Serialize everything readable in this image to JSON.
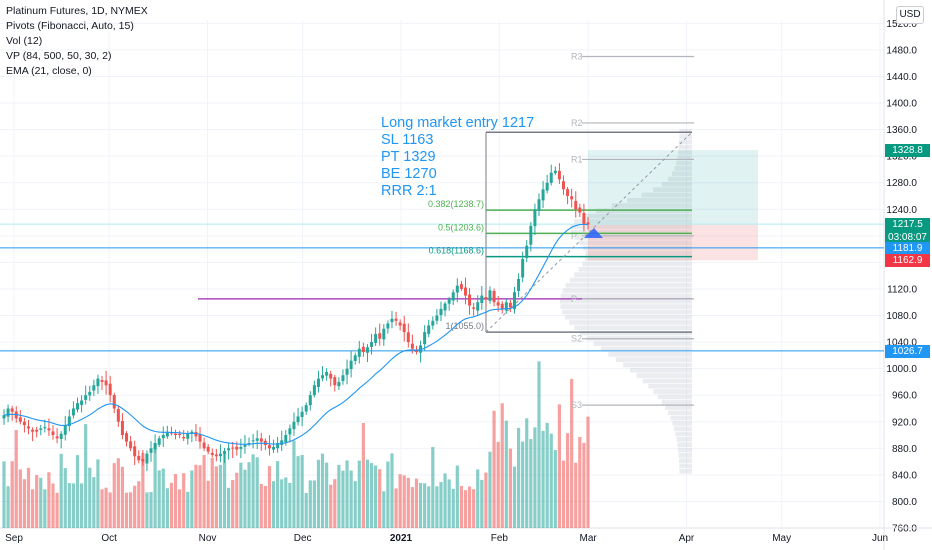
{
  "legend": {
    "title": "Platinum Futures, 1D, NYMEX",
    "indicators": [
      "Pivots (Fibonacci, Auto, 15)",
      "Vol (12)",
      "VP (84, 500, 50, 30, 2)",
      "EMA (21, close, 0)"
    ]
  },
  "currency": "USD",
  "trade_note": [
    "Long market entry 1217",
    "SL 1163",
    "PT 1329",
    "BE 1270",
    "RRR 2:1"
  ],
  "price_tags": [
    {
      "label": "1328.8",
      "value": 1328.8,
      "color": "#089981"
    },
    {
      "label": "1217.6",
      "value": 1217.6,
      "color": "#5d606b"
    },
    {
      "label": "1217.5",
      "value": 1217.5,
      "color": "#089981",
      "sub": "03:08:07"
    },
    {
      "label": "1181.9",
      "value": 1181.9,
      "color": "#2196f3"
    },
    {
      "label": "1162.9",
      "value": 1162.9,
      "color": "#f23645"
    },
    {
      "label": "1026.7",
      "value": 1026.7,
      "color": "#2196f3"
    }
  ],
  "colors": {
    "up": "#26a69a",
    "down": "#ef5350",
    "ema": "#2196f3",
    "fib": "#4caf50",
    "pivot": "#b2b5be",
    "pp": "#9c27b0"
  },
  "chart_data": {
    "type": "candlestick",
    "title": "Platinum Futures, 1D, NYMEX",
    "x_ticks": [
      "Sep",
      "Oct",
      "Nov",
      "Dec",
      "2021",
      "Feb",
      "Mar",
      "Apr",
      "May",
      "Jun"
    ],
    "x_tick_dates": [
      "2020-09-01",
      "2020-10-01",
      "2020-11-01",
      "2020-12-01",
      "2021-01-01",
      "2021-02-01",
      "2021-03-01",
      "2021-04-01",
      "2021-05-01",
      "2021-06-01"
    ],
    "y_ticks": [
      760,
      800,
      840,
      880,
      920,
      960,
      1000,
      1040,
      1080,
      1120,
      1160,
      1200,
      1240,
      1280,
      1320,
      1360,
      1400,
      1440,
      1480,
      1520
    ],
    "ylim": [
      760,
      1525
    ],
    "closes": [
      930,
      940,
      935,
      925,
      920,
      915,
      910,
      905,
      905,
      910,
      912,
      907,
      900,
      895,
      902,
      915,
      928,
      940,
      948,
      952,
      960,
      965,
      975,
      985,
      980,
      975,
      960,
      940,
      920,
      900,
      890,
      880,
      868,
      862,
      860,
      872,
      880,
      888,
      895,
      900,
      905,
      903,
      900,
      900,
      895,
      902,
      905,
      898,
      890,
      880,
      875,
      870,
      868,
      872,
      876,
      880,
      880,
      878,
      882,
      885,
      888,
      892,
      895,
      890,
      885,
      880,
      882,
      888,
      892,
      900,
      910,
      920,
      928,
      935,
      945,
      960,
      975,
      985,
      990,
      995,
      985,
      975,
      980,
      990,
      1000,
      1012,
      1020,
      1030,
      1025,
      1032,
      1040,
      1052,
      1045,
      1060,
      1068,
      1075,
      1072,
      1065,
      1055,
      1040,
      1030,
      1025,
      1035,
      1055,
      1065,
      1072,
      1080,
      1090,
      1098,
      1105,
      1115,
      1125,
      1120,
      1110,
      1095,
      1090,
      1100,
      1110,
      1105,
      1118,
      1100,
      1095,
      1090,
      1100,
      1092,
      1115,
      1135,
      1165,
      1185,
      1215,
      1240,
      1255,
      1270,
      1280,
      1295,
      1298,
      1285,
      1270,
      1260,
      1255,
      1240,
      1235,
      1218,
      1217
    ],
    "ema_note": "EMA (21, close, 0)",
    "fib_levels": [
      {
        "label": "0.382(1238.7)",
        "value": 1238.7
      },
      {
        "label": "0.5(1203.6)",
        "value": 1203.6
      },
      {
        "label": "0.618(1168.6)",
        "value": 1168.6
      },
      {
        "label": "1(1055.0)",
        "value": 1055.0
      }
    ],
    "pivot_levels": [
      {
        "label": "R3",
        "value": 1470
      },
      {
        "label": "R2",
        "value": 1370
      },
      {
        "label": "R1",
        "value": 1315
      },
      {
        "label": "P",
        "value": 1200
      },
      {
        "label": "P",
        "value": 1105
      },
      {
        "label": "S2",
        "value": 1045
      },
      {
        "label": "S3",
        "value": 945
      }
    ],
    "pivot_high": 1356,
    "purple_line": 1105,
    "fib_top": 1356,
    "position": {
      "entry": 1217,
      "stop": 1163,
      "target": 1329
    },
    "horizontal_lines": [
      1217.6,
      1181.9,
      1026.7
    ],
    "volume_peak_index": 131
  }
}
